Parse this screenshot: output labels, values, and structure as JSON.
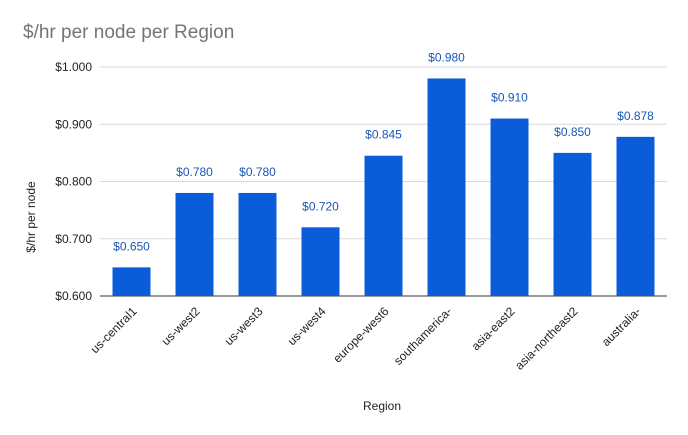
{
  "chart_data": {
    "type": "bar",
    "title": "$/hr per node per Region",
    "xlabel": "Region",
    "ylabel": "$/hr per node",
    "categories": [
      "us-central1",
      "us-west2",
      "us-west3",
      "us-west4",
      "europe-west6",
      "southamerica-",
      "asia-east2",
      "asia-northeast2",
      "australia-"
    ],
    "values": [
      0.65,
      0.78,
      0.78,
      0.72,
      0.845,
      0.98,
      0.91,
      0.85,
      0.878
    ],
    "data_labels": [
      "$0.650",
      "$0.780",
      "$0.780",
      "$0.720",
      "$0.845",
      "$0.980",
      "$0.910",
      "$0.850",
      "$0.878"
    ],
    "yticks": [
      0.6,
      0.7,
      0.8,
      0.9,
      1.0
    ],
    "ytick_labels": [
      "$0.600",
      "$0.700",
      "$0.800",
      "$0.900",
      "$1.000"
    ],
    "ylim": [
      0.6,
      1.0
    ],
    "grid": true,
    "legend": "none",
    "bar_color": "#0b5cd8",
    "label_color": "#1a56b8",
    "grid_color": "#d9d9d9",
    "title_color": "#757575"
  }
}
